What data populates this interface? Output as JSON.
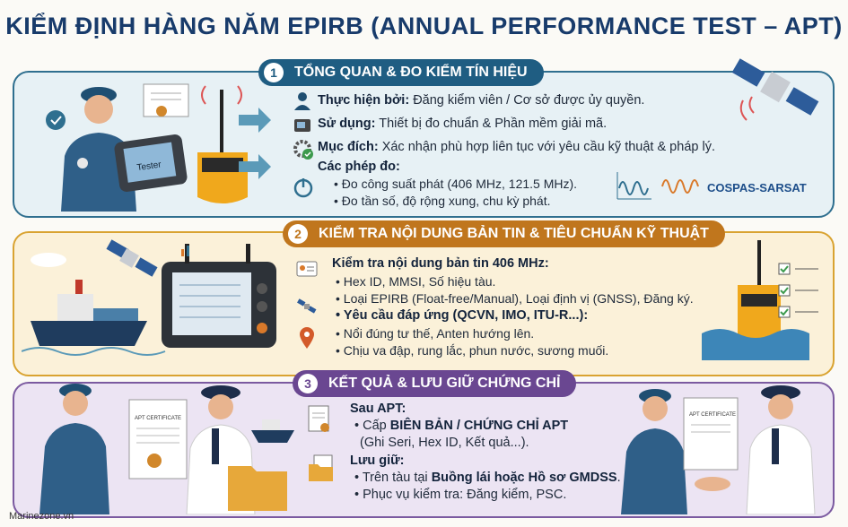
{
  "title": "KIỂM ĐỊNH HÀNG NĂM EPIRB (ANNUAL PERFORMANCE TEST – APT)",
  "sections": [
    {
      "num": "1",
      "heading": "TỔNG QUAN & ĐO KIỂM TÍN HIỆU",
      "lines": [
        {
          "label": "Thực hiện bởi:",
          "text": " Đăng kiểm viên / Cơ sở được ủy quyền."
        },
        {
          "label": "Sử dụng:",
          "text": " Thiết bị đo chuẩn & Phần mềm giải mã."
        },
        {
          "label": "Mục đích:",
          "text": " Xác nhận phù hợp liên tục với yêu cầu kỹ thuật & pháp lý."
        },
        {
          "label": "Các phép đo:",
          "text": ""
        }
      ],
      "bullets": [
        "• Đo công suất phát (406 MHz, 121.5 MHz).",
        "• Đo tần số, độ rộng xung, chu kỳ phát."
      ],
      "device_label": "Tester",
      "logo": "COSPAS-SARSAT"
    },
    {
      "num": "2",
      "heading": "KIỂM TRA NỘI DUNG BẢN TIN & TIÊU CHUẨN KỸ THUẬT",
      "head1": "Kiểm tra nội dung bản tin 406 MHz:",
      "bullets1": [
        "• Hex ID, MMSI, Số hiệu tàu.",
        "• Loại EPIRB (Float-free/Manual), Loại định vị (GNSS), Đăng ký."
      ],
      "head2": "• Yêu cầu đáp ứng (QCVN, IMO, ITU-R...):",
      "bullets2": [
        "• Nổi đúng tư thế, Anten hướng lên.",
        "• Chịu va đập, rung lắc, phun nước, sương muối."
      ]
    },
    {
      "num": "3",
      "heading": "KẾT QUẢ & LƯU GIỮ CHỨNG CHỈ",
      "after_label": "Sau APT:",
      "after_prefix": "• Cấp ",
      "after_bold": "BIÊN BẢN / CHỨNG CHỈ APT",
      "after_note": "(Ghi Seri, Hex ID, Kết quả...).",
      "keep_label": "Lưu giữ:",
      "keep_prefix": "• Trên tàu tại ",
      "keep_bold": "Buồng lái hoặc Hồ sơ GMDSS",
      "keep_suffix": ".",
      "keep2": "• Phục vụ kiểm tra: Đăng kiểm, PSC.",
      "cert_label": "APT CERTIFICATE"
    }
  ],
  "footer": "Marinezone.vn",
  "colors": {
    "title": "#183b6b",
    "panel1": "#2f6f8f",
    "panel2": "#d9a331",
    "panel3": "#7b5aa0"
  }
}
